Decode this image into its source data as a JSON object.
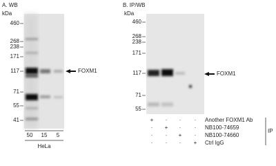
{
  "panel_a": {
    "title": "A. WB",
    "unit": "kDa",
    "markers": [
      "460",
      "268",
      "238",
      "171",
      "117",
      "71",
      "55",
      "41"
    ],
    "target": "FOXM1",
    "lanes": [
      "50",
      "15",
      "5"
    ],
    "cell_line": "HeLa"
  },
  "panel_b": {
    "title": "B. IP/WB",
    "unit": "kDa",
    "markers": [
      "460",
      "268",
      "238",
      "171",
      "117",
      "71",
      "55"
    ],
    "target": "FOXM1",
    "rows": [
      {
        "label": "Another FOXM1 Ab",
        "signs": [
          "+",
          "·",
          "·",
          "·"
        ]
      },
      {
        "label": "NB100-74659",
        "signs": [
          "·",
          "+",
          "·",
          "·"
        ]
      },
      {
        "label": "NB100-74660",
        "signs": [
          "·",
          "·",
          "+",
          "·"
        ]
      },
      {
        "label": "Ctrl IgG",
        "signs": [
          "·",
          "·",
          "·",
          "+"
        ]
      }
    ],
    "group": "IP"
  }
}
